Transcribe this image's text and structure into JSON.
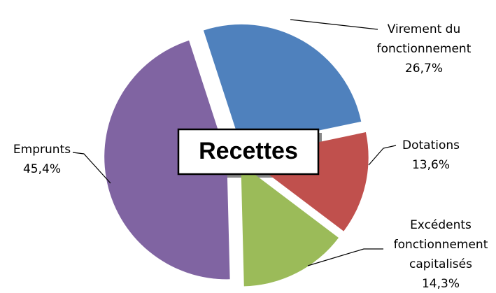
{
  "chart_data": {
    "type": "pie",
    "title": "Recettes",
    "categories": [
      "Virement du fonctionnement",
      "Dotations",
      "Excédents fonctionnement capitalisés",
      "Emprunts"
    ],
    "values": [
      26.7,
      13.6,
      14.3,
      45.4
    ],
    "value_labels": [
      "26,7%",
      "13,6%",
      "14,3%",
      "45,4%"
    ],
    "colors": [
      "#4f81bd",
      "#c0504d",
      "#9bbb59",
      "#8064a2"
    ]
  }
}
